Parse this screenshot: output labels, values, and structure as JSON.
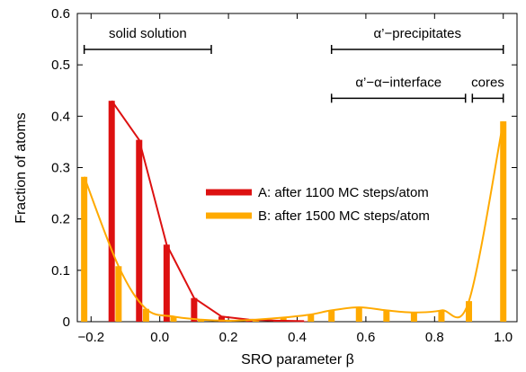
{
  "chart_data": {
    "type": "bar",
    "xlabel": "SRO parameter β",
    "ylabel": "Fraction of atoms",
    "xlim": [
      -0.24,
      1.04
    ],
    "ylim": [
      0,
      0.6
    ],
    "xticks": [
      {
        "value": -0.2,
        "label": "−0.2"
      },
      {
        "value": 0.0,
        "label": "0.0"
      },
      {
        "value": 0.2,
        "label": "0.2"
      },
      {
        "value": 0.4,
        "label": "0.4"
      },
      {
        "value": 0.6,
        "label": "0.6"
      },
      {
        "value": 0.8,
        "label": "0.8"
      },
      {
        "value": 1.0,
        "label": "1.0"
      }
    ],
    "yticks": [
      {
        "value": 0,
        "label": "0"
      },
      {
        "value": 0.1,
        "label": "0.1"
      },
      {
        "value": 0.2,
        "label": "0.2"
      },
      {
        "value": 0.3,
        "label": "0.3"
      },
      {
        "value": 0.4,
        "label": "0.4"
      },
      {
        "value": 0.5,
        "label": "0.5"
      },
      {
        "value": 0.6,
        "label": "0.6"
      }
    ],
    "legend_position": "center-right",
    "series": [
      {
        "name": "A: after 1100 MC steps/atom",
        "color": "#dd1111",
        "x": [
          -0.14,
          -0.06,
          0.02,
          0.1,
          0.18,
          0.26,
          0.34,
          0.42
        ],
        "values": [
          0.43,
          0.354,
          0.15,
          0.046,
          0.01,
          0.004,
          0.002,
          0.001
        ]
      },
      {
        "name": "B: after 1500 MC steps/atom",
        "color": "#ffaa00",
        "x": [
          -0.22,
          -0.12,
          -0.04,
          0.04,
          0.12,
          0.2,
          0.28,
          0.36,
          0.44,
          0.5,
          0.58,
          0.66,
          0.74,
          0.82,
          0.9,
          1.0
        ],
        "values": [
          0.282,
          0.108,
          0.025,
          0.01,
          0.004,
          0.002,
          0.004,
          0.008,
          0.014,
          0.022,
          0.028,
          0.022,
          0.018,
          0.022,
          0.04,
          0.39
        ]
      }
    ],
    "annotations": [
      {
        "label": "solid solution",
        "from": -0.22,
        "to": 0.15,
        "y": 0.53
      },
      {
        "label": "α’−precipitates",
        "from": 0.5,
        "to": 1.0,
        "y": 0.53
      },
      {
        "label": "α’−α−interface",
        "from": 0.5,
        "to": 0.89,
        "y": 0.435
      },
      {
        "label": "cores",
        "from": 0.91,
        "to": 1.0,
        "y": 0.435
      }
    ]
  }
}
